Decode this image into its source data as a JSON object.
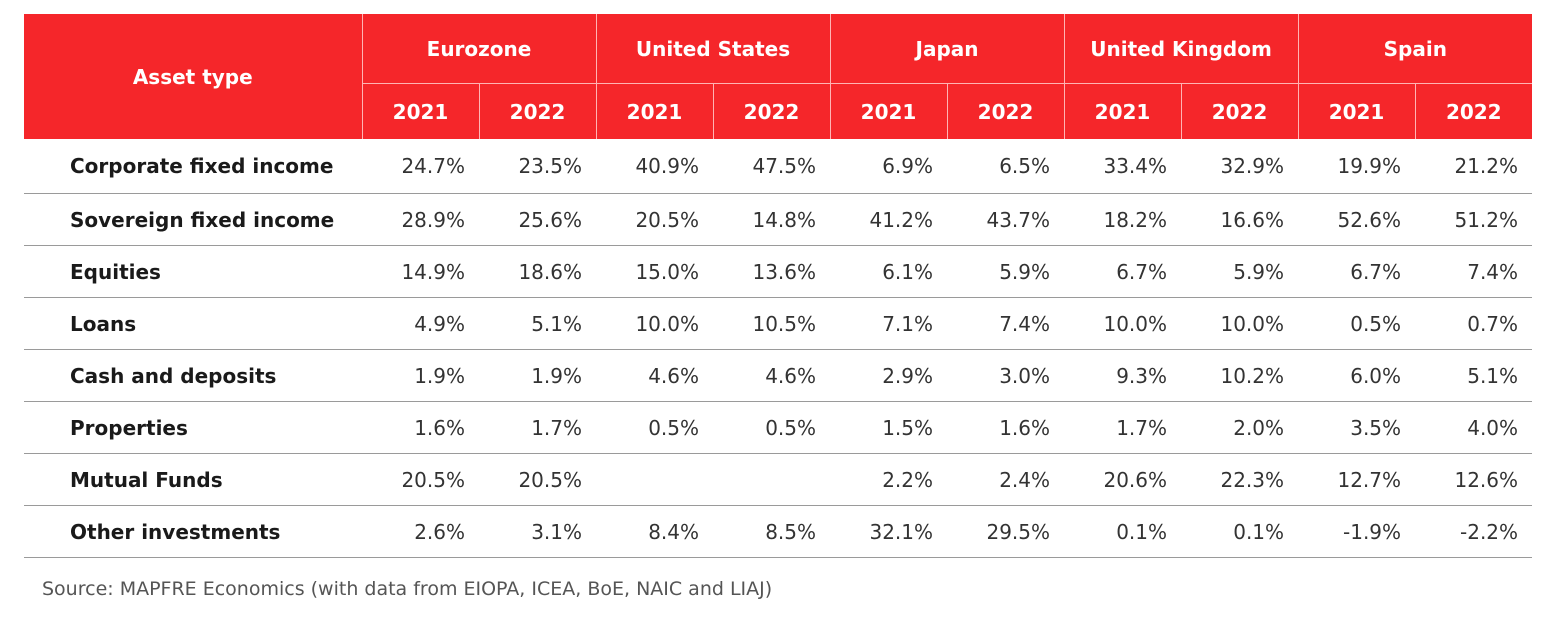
{
  "chart_data": {
    "type": "table",
    "row_header": "Asset type",
    "groups": [
      "Eurozone",
      "United States",
      "Japan",
      "United Kingdom",
      "Spain"
    ],
    "years": [
      "2021",
      "2022"
    ],
    "rows": [
      {
        "label": "Corporate fixed income",
        "values": [
          "24.7%",
          "23.5%",
          "40.9%",
          "47.5%",
          "6.9%",
          "6.5%",
          "33.4%",
          "32.9%",
          "19.9%",
          "21.2%"
        ]
      },
      {
        "label": "Sovereign fixed income",
        "values": [
          "28.9%",
          "25.6%",
          "20.5%",
          "14.8%",
          "41.2%",
          "43.7%",
          "18.2%",
          "16.6%",
          "52.6%",
          "51.2%"
        ]
      },
      {
        "label": "Equities",
        "values": [
          "14.9%",
          "18.6%",
          "15.0%",
          "13.6%",
          "6.1%",
          "5.9%",
          "6.7%",
          "5.9%",
          "6.7%",
          "7.4%"
        ]
      },
      {
        "label": "Loans",
        "values": [
          "4.9%",
          "5.1%",
          "10.0%",
          "10.5%",
          "7.1%",
          "7.4%",
          "10.0%",
          "10.0%",
          "0.5%",
          "0.7%"
        ]
      },
      {
        "label": "Cash and deposits",
        "values": [
          "1.9%",
          "1.9%",
          "4.6%",
          "4.6%",
          "2.9%",
          "3.0%",
          "9.3%",
          "10.2%",
          "6.0%",
          "5.1%"
        ]
      },
      {
        "label": "Properties",
        "values": [
          "1.6%",
          "1.7%",
          "0.5%",
          "0.5%",
          "1.5%",
          "1.6%",
          "1.7%",
          "2.0%",
          "3.5%",
          "4.0%"
        ]
      },
      {
        "label": "Mutual Funds",
        "values": [
          "20.5%",
          "20.5%",
          "",
          "",
          "2.2%",
          "2.4%",
          "20.6%",
          "22.3%",
          "12.7%",
          "12.6%"
        ]
      },
      {
        "label": "Other investments",
        "values": [
          "2.6%",
          "3.1%",
          "8.4%",
          "8.5%",
          "32.1%",
          "29.5%",
          "0.1%",
          "0.1%",
          "-1.9%",
          "-2.2%"
        ]
      }
    ],
    "source": "Source: MAPFRE Economics (with data from EIOPA, ICEA, BoE, NAIC and LIAJ)",
    "colors": {
      "header_bg": "#f5262a",
      "header_text": "#ffffff",
      "row_rule": "#9a9a9a"
    }
  }
}
